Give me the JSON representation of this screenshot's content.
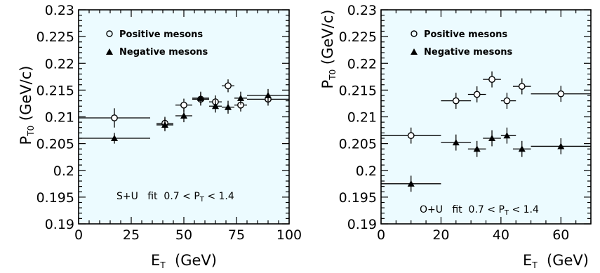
{
  "chart_data": [
    {
      "type": "scatter",
      "xlabel": "E_T (GeV)",
      "ylabel": "P_T0 (GeV/c)",
      "xlim": [
        0,
        100
      ],
      "ylim": [
        0.19,
        0.23
      ],
      "xticks": [
        "0",
        "25",
        "50",
        "75",
        "100"
      ],
      "yticks": [
        "0.19",
        "0.195",
        "0.2",
        "0.205",
        "0.21",
        "0.215",
        "0.22",
        "0.225",
        "0.23"
      ],
      "annotation": "S+U   fit  0.7 < P_T < 1.4",
      "legend_position": "top-left",
      "series": [
        {
          "name": "Positive mesons",
          "marker": "open-circle",
          "points": [
            {
              "x": 17,
              "y": 0.2098,
              "xlo": 0,
              "xhi": 34,
              "yerr": 0.0018
            },
            {
              "x": 41,
              "y": 0.2088,
              "xlo": 37,
              "xhi": 45,
              "yerr": 0.0012
            },
            {
              "x": 50,
              "y": 0.2122,
              "xlo": 46,
              "xhi": 54,
              "yerr": 0.0012
            },
            {
              "x": 58,
              "y": 0.2133,
              "xlo": 54,
              "xhi": 62,
              "yerr": 0.0012
            },
            {
              "x": 65,
              "y": 0.2128,
              "xlo": 62,
              "xhi": 68,
              "yerr": 0.0012
            },
            {
              "x": 71,
              "y": 0.2158,
              "xlo": 68,
              "xhi": 74,
              "yerr": 0.0012
            },
            {
              "x": 77,
              "y": 0.2122,
              "xlo": 74,
              "xhi": 80,
              "yerr": 0.0012
            },
            {
              "x": 90,
              "y": 0.2133,
              "xlo": 80,
              "xhi": 100,
              "yerr": 0.0012
            }
          ]
        },
        {
          "name": "Negative mesons",
          "marker": "filled-triangle",
          "points": [
            {
              "x": 17,
              "y": 0.206,
              "xlo": 0,
              "xhi": 34,
              "yerr": 0.001
            },
            {
              "x": 41,
              "y": 0.2085,
              "xlo": 37,
              "xhi": 45,
              "yerr": 0.0012
            },
            {
              "x": 50,
              "y": 0.2102,
              "xlo": 46,
              "xhi": 54,
              "yerr": 0.0012
            },
            {
              "x": 58,
              "y": 0.2135,
              "xlo": 54,
              "xhi": 62,
              "yerr": 0.0012
            },
            {
              "x": 65,
              "y": 0.212,
              "xlo": 62,
              "xhi": 68,
              "yerr": 0.0012
            },
            {
              "x": 71,
              "y": 0.2118,
              "xlo": 68,
              "xhi": 74,
              "yerr": 0.0012
            },
            {
              "x": 77,
              "y": 0.2135,
              "xlo": 74,
              "xhi": 80,
              "yerr": 0.0012
            },
            {
              "x": 90,
              "y": 0.214,
              "xlo": 80,
              "xhi": 100,
              "yerr": 0.0012
            }
          ]
        }
      ]
    },
    {
      "type": "scatter",
      "xlabel": "E_T (GeV)",
      "ylabel": "P_T0 (GeV/c)",
      "xlim": [
        0,
        70
      ],
      "ylim": [
        0.19,
        0.23
      ],
      "xticks": [
        "0",
        "20",
        "40",
        "60"
      ],
      "yticks": [
        "0.19",
        "0.195",
        "0.2",
        "0.205",
        "0.21",
        "0.215",
        "0.22",
        "0.225",
        "0.23"
      ],
      "annotation": "O+U   fit  0.7 < P_T < 1.4",
      "legend_position": "top-left",
      "series": [
        {
          "name": "Positive mesons",
          "marker": "open-circle",
          "points": [
            {
              "x": 10,
              "y": 0.2065,
              "xlo": 0,
              "xhi": 20,
              "yerr": 0.0015
            },
            {
              "x": 25,
              "y": 0.213,
              "xlo": 20,
              "xhi": 30,
              "yerr": 0.0015
            },
            {
              "x": 32,
              "y": 0.2142,
              "xlo": 29,
              "xhi": 35,
              "yerr": 0.0015
            },
            {
              "x": 37,
              "y": 0.217,
              "xlo": 34,
              "xhi": 40,
              "yerr": 0.0015
            },
            {
              "x": 42,
              "y": 0.213,
              "xlo": 40,
              "xhi": 45,
              "yerr": 0.0015
            },
            {
              "x": 47,
              "y": 0.2157,
              "xlo": 44,
              "xhi": 50,
              "yerr": 0.0015
            },
            {
              "x": 60,
              "y": 0.2143,
              "xlo": 50,
              "xhi": 70,
              "yerr": 0.0015
            }
          ]
        },
        {
          "name": "Negative mesons",
          "marker": "filled-triangle",
          "points": [
            {
              "x": 10,
              "y": 0.1975,
              "xlo": 0,
              "xhi": 20,
              "yerr": 0.0015
            },
            {
              "x": 25,
              "y": 0.2052,
              "xlo": 20,
              "xhi": 30,
              "yerr": 0.0015
            },
            {
              "x": 32,
              "y": 0.204,
              "xlo": 29,
              "xhi": 35,
              "yerr": 0.0015
            },
            {
              "x": 37,
              "y": 0.206,
              "xlo": 34,
              "xhi": 40,
              "yerr": 0.0015
            },
            {
              "x": 42,
              "y": 0.2065,
              "xlo": 40,
              "xhi": 45,
              "yerr": 0.0015
            },
            {
              "x": 47,
              "y": 0.204,
              "xlo": 44,
              "xhi": 50,
              "yerr": 0.0015
            },
            {
              "x": 60,
              "y": 0.2045,
              "xlo": 50,
              "xhi": 70,
              "yerr": 0.0015
            }
          ]
        }
      ]
    }
  ]
}
